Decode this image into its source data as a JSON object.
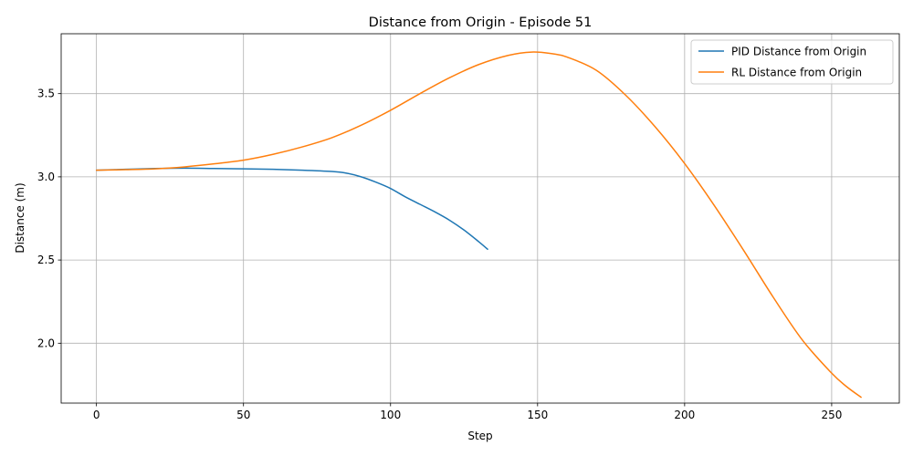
{
  "chart_data": {
    "type": "line",
    "title": "Distance from Origin - Episode 51",
    "xlabel": "Step",
    "ylabel": "Distance (m)",
    "xlim": [
      -12,
      273
    ],
    "ylim": [
      1.64,
      3.86
    ],
    "xticks": [
      0,
      50,
      100,
      150,
      200,
      250
    ],
    "yticks": [
      2.0,
      2.5,
      3.0,
      3.5
    ],
    "xtick_labels": [
      "0",
      "50",
      "100",
      "150",
      "200",
      "250"
    ],
    "ytick_labels": [
      "2.0",
      "2.5",
      "3.0",
      "3.5"
    ],
    "grid": true,
    "legend_position": "top-right",
    "series": [
      {
        "name": "PID Distance from Origin",
        "color": "#1f77b4",
        "x": [
          0,
          10,
          20,
          30,
          40,
          50,
          60,
          70,
          80,
          85,
          90,
          95,
          100,
          105,
          110,
          115,
          120,
          125,
          130,
          133
        ],
        "y": [
          3.04,
          3.045,
          3.05,
          3.052,
          3.05,
          3.048,
          3.045,
          3.04,
          3.032,
          3.022,
          3.0,
          2.968,
          2.93,
          2.88,
          2.835,
          2.79,
          2.74,
          2.68,
          2.61,
          2.565
        ]
      },
      {
        "name": "RL Distance from Origin",
        "color": "#ff7f0e",
        "x": [
          0,
          10,
          20,
          30,
          40,
          50,
          60,
          70,
          80,
          90,
          100,
          110,
          120,
          130,
          140,
          148,
          155,
          160,
          170,
          180,
          190,
          200,
          210,
          220,
          230,
          240,
          250,
          255,
          260
        ],
        "y": [
          3.04,
          3.043,
          3.048,
          3.06,
          3.078,
          3.1,
          3.135,
          3.18,
          3.235,
          3.31,
          3.4,
          3.5,
          3.595,
          3.675,
          3.73,
          3.75,
          3.74,
          3.72,
          3.64,
          3.49,
          3.3,
          3.08,
          2.83,
          2.56,
          2.28,
          2.02,
          1.82,
          1.74,
          1.675
        ]
      }
    ]
  }
}
